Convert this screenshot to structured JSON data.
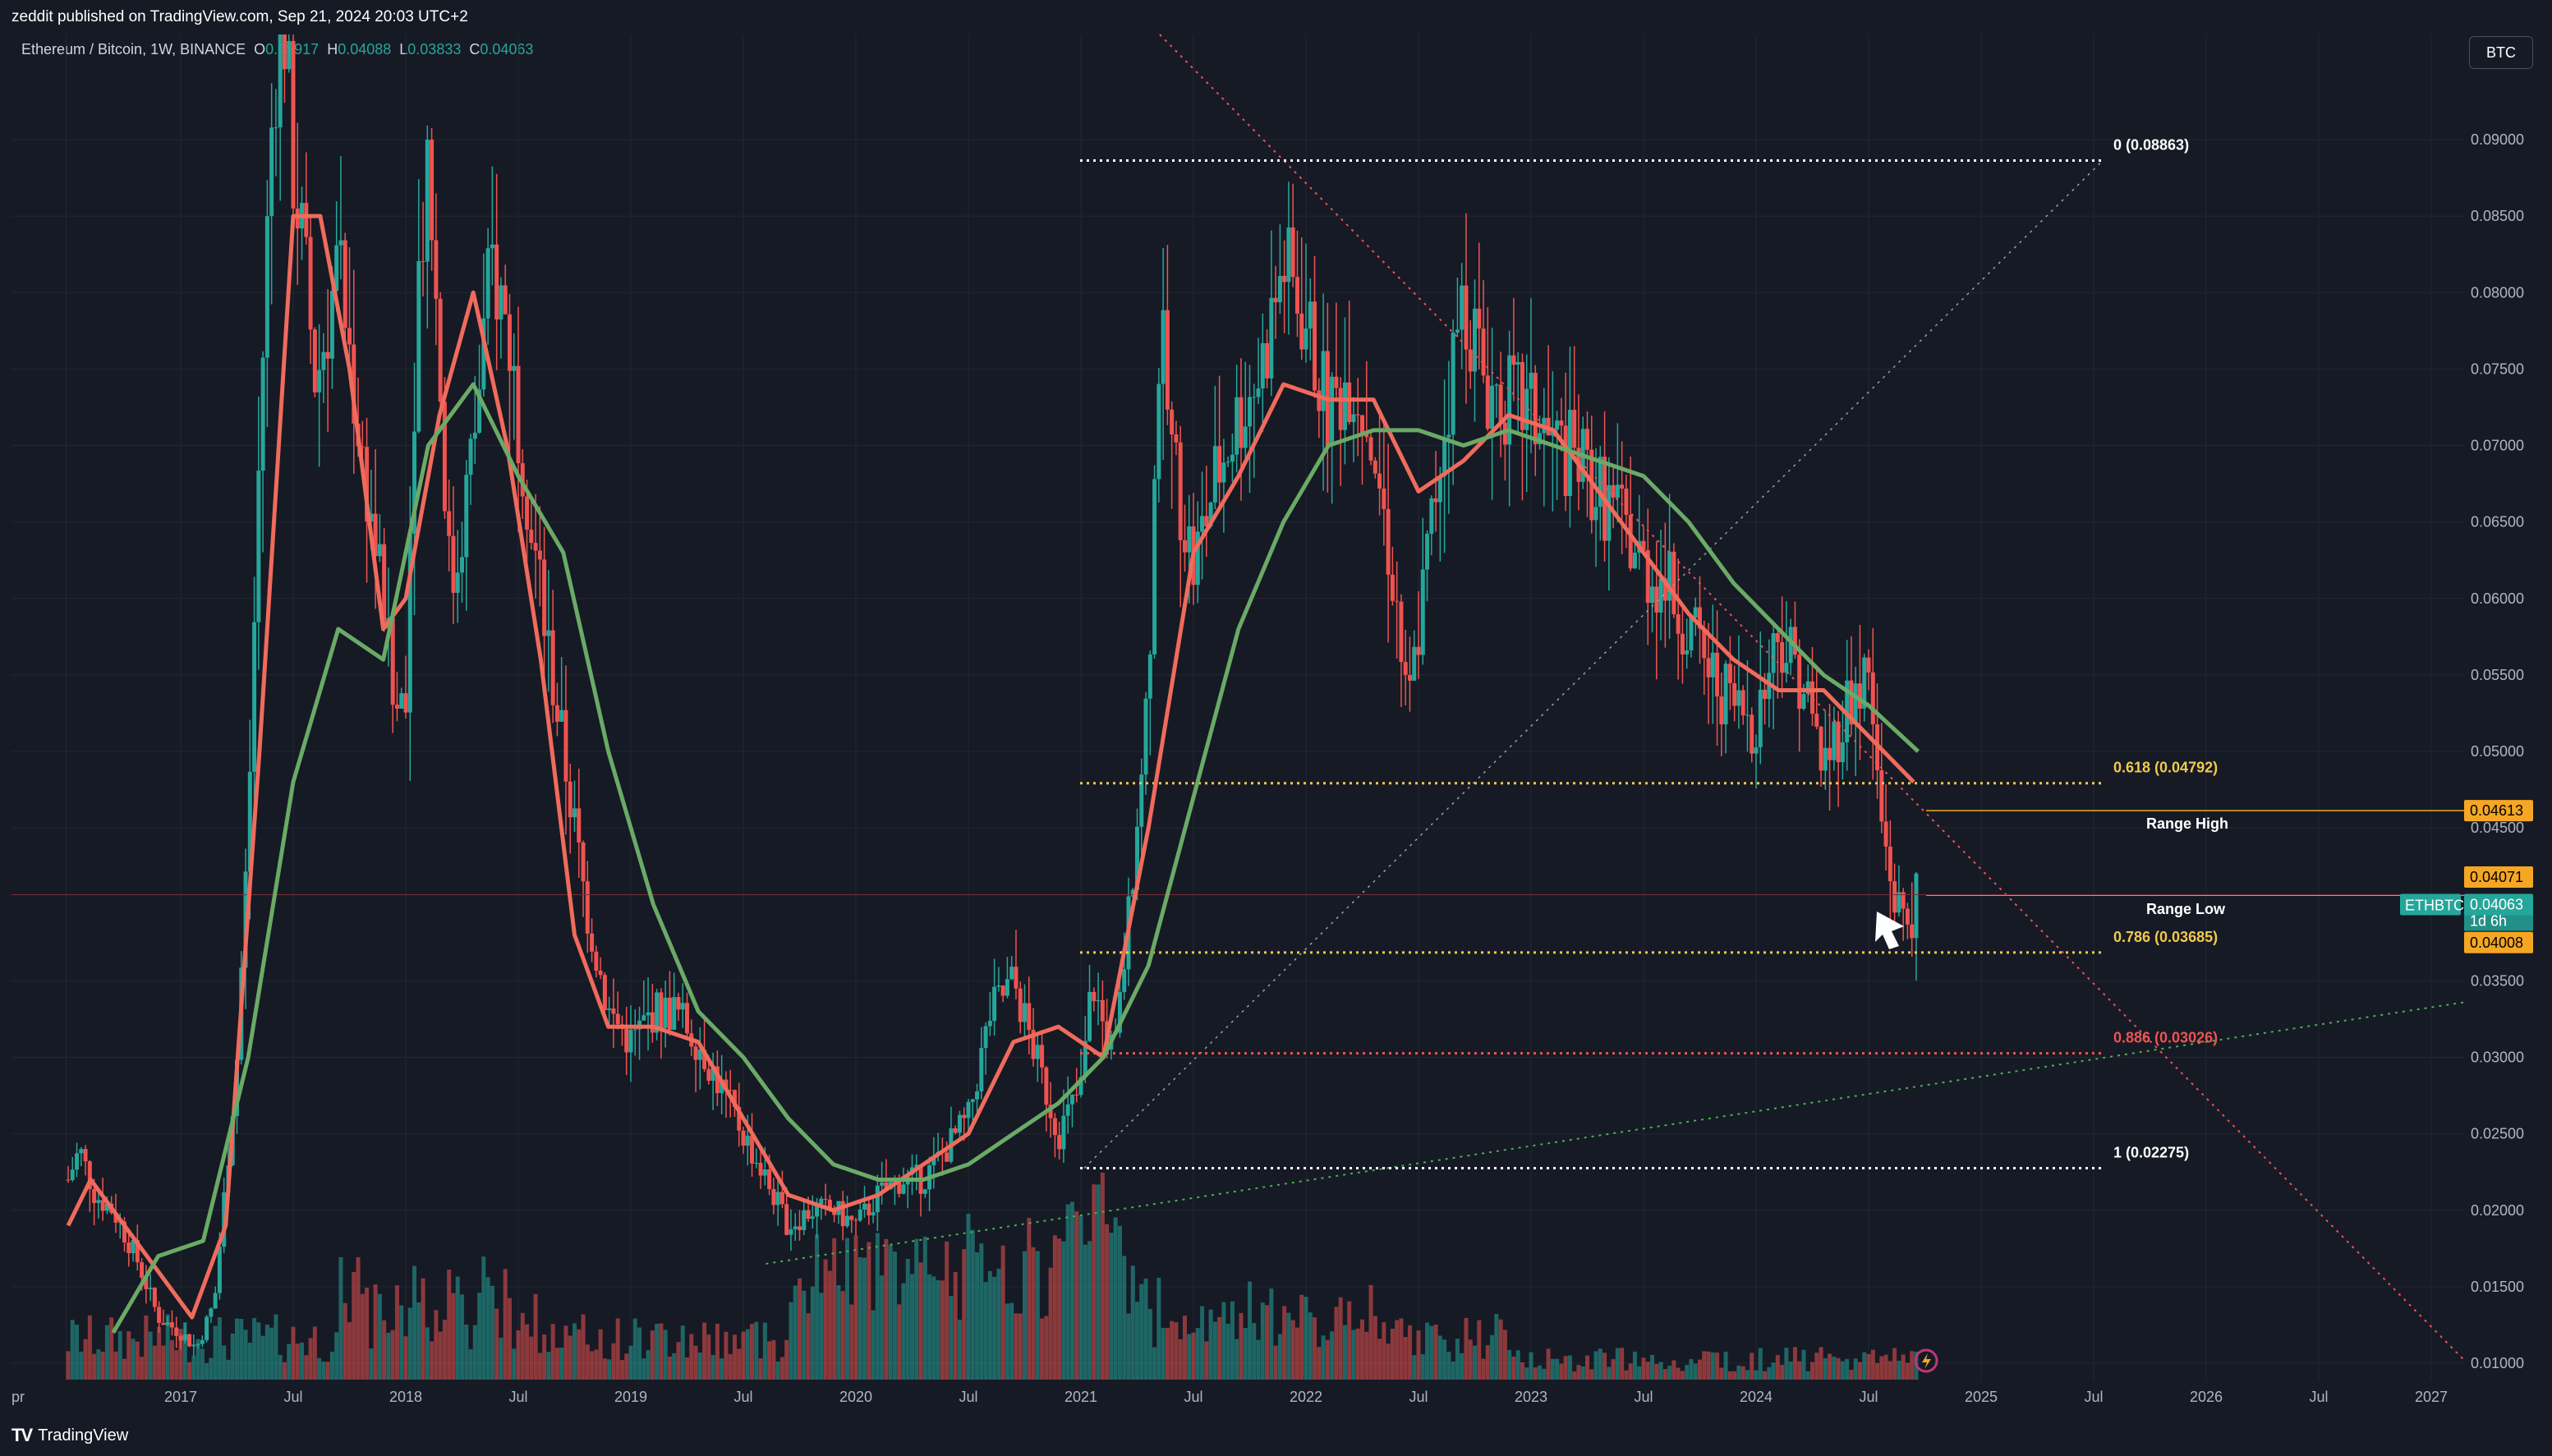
{
  "header": {
    "published": "zeddit published on TradingView.com, Sep 21, 2024 20:03 UTC+2"
  },
  "legend": {
    "symbol": "Ethereum / Bitcoin, 1W, BINANCE",
    "o_label": "O",
    "o_val": "0.03917",
    "h_label": "H",
    "h_val": "0.04088",
    "l_label": "L",
    "l_val": "0.03833",
    "c_label": "C",
    "c_val": "0.04063"
  },
  "currency_button": "BTC",
  "footer": {
    "brand": "TradingView",
    "logo": "TV"
  },
  "chart_data": {
    "type": "candlestick",
    "title": "Ethereum / Bitcoin, 1W, BINANCE",
    "ylim": [
      0.0095,
      0.0955
    ],
    "y_ticks": [
      "0.09000",
      "0.08500",
      "0.08000",
      "0.07500",
      "0.07000",
      "0.06500",
      "0.06000",
      "0.05500",
      "0.05000",
      "0.04500",
      "0.03500",
      "0.03000",
      "0.02500",
      "0.02000",
      "0.01500",
      "0.01000"
    ],
    "x_ticks": [
      {
        "t": 2016.49,
        "label": "pr"
      },
      {
        "t": 2017.0,
        "label": "2017"
      },
      {
        "t": 2017.5,
        "label": "Jul"
      },
      {
        "t": 2018.0,
        "label": "2018"
      },
      {
        "t": 2018.5,
        "label": "Jul"
      },
      {
        "t": 2019.0,
        "label": "2019"
      },
      {
        "t": 2019.5,
        "label": "Jul"
      },
      {
        "t": 2020.0,
        "label": "2020"
      },
      {
        "t": 2020.5,
        "label": "Jul"
      },
      {
        "t": 2021.0,
        "label": "2021"
      },
      {
        "t": 2021.5,
        "label": "Jul"
      },
      {
        "t": 2022.0,
        "label": "2022"
      },
      {
        "t": 2022.5,
        "label": "Jul"
      },
      {
        "t": 2023.0,
        "label": "2023"
      },
      {
        "t": 2023.5,
        "label": "Jul"
      },
      {
        "t": 2024.0,
        "label": "2024"
      },
      {
        "t": 2024.5,
        "label": "Jul"
      },
      {
        "t": 2025.0,
        "label": "2025"
      },
      {
        "t": 2025.5,
        "label": "Jul"
      },
      {
        "t": 2026.0,
        "label": "2026"
      },
      {
        "t": 2026.5,
        "label": "Jul"
      },
      {
        "t": 2027.0,
        "label": "2027"
      }
    ],
    "price_path": [
      [
        2016.5,
        0.022
      ],
      [
        2016.55,
        0.024
      ],
      [
        2016.62,
        0.021
      ],
      [
        2016.7,
        0.02
      ],
      [
        2016.8,
        0.017
      ],
      [
        2016.9,
        0.013
      ],
      [
        2017.0,
        0.012
      ],
      [
        2017.07,
        0.011
      ],
      [
        2017.15,
        0.014
      ],
      [
        2017.2,
        0.022
      ],
      [
        2017.25,
        0.03
      ],
      [
        2017.3,
        0.045
      ],
      [
        2017.35,
        0.07
      ],
      [
        2017.4,
        0.09
      ],
      [
        2017.45,
        0.1
      ],
      [
        2017.5,
        0.088
      ],
      [
        2017.55,
        0.082
      ],
      [
        2017.6,
        0.074
      ],
      [
        2017.7,
        0.082
      ],
      [
        2017.8,
        0.07
      ],
      [
        2017.9,
        0.06
      ],
      [
        2017.95,
        0.052
      ],
      [
        2018.0,
        0.055
      ],
      [
        2018.05,
        0.08
      ],
      [
        2018.1,
        0.09
      ],
      [
        2018.2,
        0.06
      ],
      [
        2018.3,
        0.07
      ],
      [
        2018.38,
        0.082
      ],
      [
        2018.45,
        0.078
      ],
      [
        2018.5,
        0.072
      ],
      [
        2018.6,
        0.06
      ],
      [
        2018.7,
        0.05
      ],
      [
        2018.8,
        0.04
      ],
      [
        2018.9,
        0.033
      ],
      [
        2019.0,
        0.031
      ],
      [
        2019.1,
        0.033
      ],
      [
        2019.2,
        0.033
      ],
      [
        2019.3,
        0.031
      ],
      [
        2019.4,
        0.028
      ],
      [
        2019.5,
        0.025
      ],
      [
        2019.6,
        0.022
      ],
      [
        2019.7,
        0.019
      ],
      [
        2019.8,
        0.02
      ],
      [
        2019.9,
        0.02
      ],
      [
        2020.0,
        0.019
      ],
      [
        2020.1,
        0.021
      ],
      [
        2020.2,
        0.022
      ],
      [
        2020.3,
        0.022
      ],
      [
        2020.4,
        0.024
      ],
      [
        2020.5,
        0.026
      ],
      [
        2020.6,
        0.033
      ],
      [
        2020.7,
        0.035
      ],
      [
        2020.8,
        0.03
      ],
      [
        2020.9,
        0.025
      ],
      [
        2021.0,
        0.028
      ],
      [
        2021.05,
        0.035
      ],
      [
        2021.1,
        0.032
      ],
      [
        2021.15,
        0.03
      ],
      [
        2021.25,
        0.045
      ],
      [
        2021.3,
        0.055
      ],
      [
        2021.35,
        0.078
      ],
      [
        2021.4,
        0.07
      ],
      [
        2021.5,
        0.062
      ],
      [
        2021.6,
        0.068
      ],
      [
        2021.7,
        0.072
      ],
      [
        2021.8,
        0.075
      ],
      [
        2021.9,
        0.082
      ],
      [
        2022.0,
        0.078
      ],
      [
        2022.1,
        0.072
      ],
      [
        2022.2,
        0.075
      ],
      [
        2022.3,
        0.07
      ],
      [
        2022.4,
        0.06
      ],
      [
        2022.45,
        0.052
      ],
      [
        2022.5,
        0.058
      ],
      [
        2022.6,
        0.07
      ],
      [
        2022.7,
        0.08
      ],
      [
        2022.8,
        0.074
      ],
      [
        2022.9,
        0.073
      ],
      [
        2023.0,
        0.072
      ],
      [
        2023.1,
        0.07
      ],
      [
        2023.2,
        0.069
      ],
      [
        2023.3,
        0.067
      ],
      [
        2023.4,
        0.065
      ],
      [
        2023.5,
        0.062
      ],
      [
        2023.6,
        0.061
      ],
      [
        2023.7,
        0.058
      ],
      [
        2023.8,
        0.055
      ],
      [
        2023.9,
        0.053
      ],
      [
        2024.0,
        0.052
      ],
      [
        2024.1,
        0.058
      ],
      [
        2024.2,
        0.055
      ],
      [
        2024.3,
        0.049
      ],
      [
        2024.4,
        0.053
      ],
      [
        2024.5,
        0.055
      ],
      [
        2024.55,
        0.046
      ],
      [
        2024.62,
        0.04
      ],
      [
        2024.68,
        0.039
      ],
      [
        2024.72,
        0.0406
      ]
    ],
    "series": [
      {
        "name": "",
        "color": "#f06b5c",
        "values": [
          [
            2016.5,
            0.019
          ],
          [
            2016.6,
            0.022
          ],
          [
            2016.75,
            0.019
          ],
          [
            2016.9,
            0.016
          ],
          [
            2017.05,
            0.013
          ],
          [
            2017.2,
            0.019
          ],
          [
            2017.35,
            0.05
          ],
          [
            2017.5,
            0.085
          ],
          [
            2017.62,
            0.085
          ],
          [
            2017.75,
            0.075
          ],
          [
            2017.9,
            0.058
          ],
          [
            2018.0,
            0.06
          ],
          [
            2018.15,
            0.072
          ],
          [
            2018.3,
            0.08
          ],
          [
            2018.45,
            0.07
          ],
          [
            2018.6,
            0.056
          ],
          [
            2018.75,
            0.038
          ],
          [
            2018.9,
            0.032
          ],
          [
            2019.1,
            0.032
          ],
          [
            2019.3,
            0.031
          ],
          [
            2019.5,
            0.026
          ],
          [
            2019.7,
            0.021
          ],
          [
            2019.9,
            0.02
          ],
          [
            2020.1,
            0.021
          ],
          [
            2020.3,
            0.023
          ],
          [
            2020.5,
            0.025
          ],
          [
            2020.7,
            0.031
          ],
          [
            2020.9,
            0.032
          ],
          [
            2021.1,
            0.03
          ],
          [
            2021.3,
            0.045
          ],
          [
            2021.5,
            0.063
          ],
          [
            2021.7,
            0.068
          ],
          [
            2021.9,
            0.074
          ],
          [
            2022.1,
            0.073
          ],
          [
            2022.3,
            0.073
          ],
          [
            2022.5,
            0.067
          ],
          [
            2022.7,
            0.069
          ],
          [
            2022.9,
            0.072
          ],
          [
            2023.1,
            0.071
          ],
          [
            2023.3,
            0.067
          ],
          [
            2023.5,
            0.063
          ],
          [
            2023.7,
            0.059
          ],
          [
            2023.9,
            0.056
          ],
          [
            2024.1,
            0.054
          ],
          [
            2024.3,
            0.054
          ],
          [
            2024.5,
            0.051
          ],
          [
            2024.7,
            0.048
          ]
        ]
      },
      {
        "name": "",
        "color": "#6aaa66",
        "values": [
          [
            2016.7,
            0.012
          ],
          [
            2016.9,
            0.017
          ],
          [
            2017.1,
            0.018
          ],
          [
            2017.3,
            0.03
          ],
          [
            2017.5,
            0.048
          ],
          [
            2017.7,
            0.058
          ],
          [
            2017.9,
            0.056
          ],
          [
            2018.1,
            0.07
          ],
          [
            2018.3,
            0.074
          ],
          [
            2018.5,
            0.068
          ],
          [
            2018.7,
            0.063
          ],
          [
            2018.9,
            0.05
          ],
          [
            2019.1,
            0.04
          ],
          [
            2019.3,
            0.033
          ],
          [
            2019.5,
            0.03
          ],
          [
            2019.7,
            0.026
          ],
          [
            2019.9,
            0.023
          ],
          [
            2020.1,
            0.022
          ],
          [
            2020.3,
            0.022
          ],
          [
            2020.5,
            0.023
          ],
          [
            2020.7,
            0.025
          ],
          [
            2020.9,
            0.027
          ],
          [
            2021.1,
            0.03
          ],
          [
            2021.3,
            0.036
          ],
          [
            2021.5,
            0.047
          ],
          [
            2021.7,
            0.058
          ],
          [
            2021.9,
            0.065
          ],
          [
            2022.1,
            0.07
          ],
          [
            2022.3,
            0.071
          ],
          [
            2022.5,
            0.071
          ],
          [
            2022.7,
            0.07
          ],
          [
            2022.9,
            0.071
          ],
          [
            2023.1,
            0.07
          ],
          [
            2023.3,
            0.069
          ],
          [
            2023.5,
            0.068
          ],
          [
            2023.7,
            0.065
          ],
          [
            2023.9,
            0.061
          ],
          [
            2024.1,
            0.058
          ],
          [
            2024.3,
            0.055
          ],
          [
            2024.5,
            0.053
          ],
          [
            2024.72,
            0.05
          ]
        ]
      }
    ],
    "fib_levels": [
      {
        "label": "0 (0.08863)",
        "price": 0.08863,
        "color": "#ffffff"
      },
      {
        "label": "0.618 (0.04792)",
        "price": 0.04792,
        "color": "#f2c94c"
      },
      {
        "label": "0.786 (0.03685)",
        "price": 0.03685,
        "color": "#f2c94c"
      },
      {
        "label": "0.886 (0.03026)",
        "price": 0.03026,
        "color": "#ef5350"
      },
      {
        "label": "1 (0.02275)",
        "price": 0.02275,
        "color": "#ffffff"
      }
    ],
    "annotations": [
      "Range High",
      "Range Low"
    ],
    "price_tags": {
      "range_high": "0.04613",
      "upper": "0.04071",
      "symbol": "ETHBTC",
      "last": "0.04063",
      "countdown": "1d 6h",
      "lower": "0.04008"
    },
    "colors": {
      "background": "#161a25",
      "up": "#26a69a",
      "down": "#ef5350",
      "ma_fast": "#f06b5c",
      "ma_slow": "#6aaa66",
      "fib_white": "#ffffff",
      "fib_gold": "#f2c94c",
      "fib_red": "#ef5350",
      "tag_orange": "#f5a623",
      "tag_teal": "#26a69a"
    }
  }
}
